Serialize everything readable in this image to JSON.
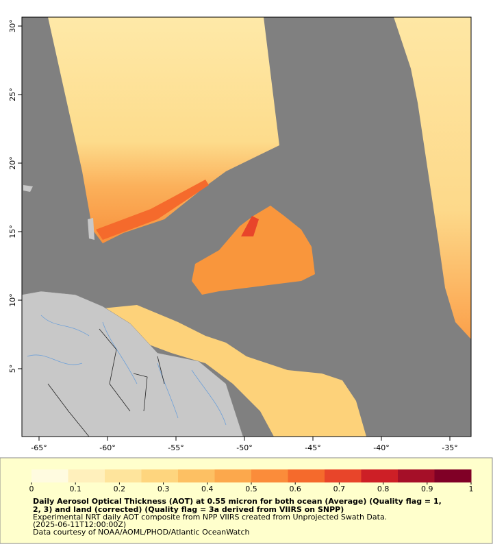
{
  "map": {
    "xlim": [
      -66.25,
      -33.45
    ],
    "ylim": [
      0.05,
      30.65
    ],
    "xticks": [
      {
        "value": -65,
        "label": "-65°"
      },
      {
        "value": -60,
        "label": "-60°"
      },
      {
        "value": -55,
        "label": "-55°"
      },
      {
        "value": -50,
        "label": "-50°"
      },
      {
        "value": -45,
        "label": "-45°"
      },
      {
        "value": -40,
        "label": "-40°"
      },
      {
        "value": -35,
        "label": "-35°"
      }
    ],
    "yticks": [
      {
        "value": 5,
        "label": "5°"
      },
      {
        "value": 10,
        "label": "10°"
      },
      {
        "value": 15,
        "label": "15°"
      },
      {
        "value": 20,
        "label": "20°"
      },
      {
        "value": 25,
        "label": "25°"
      },
      {
        "value": 30,
        "label": "30°"
      }
    ]
  },
  "colorbar": {
    "range": [
      0,
      1
    ],
    "ticks": [
      0,
      0.1,
      0.2,
      0.3,
      0.4,
      0.5,
      0.6,
      0.7,
      0.8,
      0.9,
      1
    ],
    "colors": [
      "#fffbe0",
      "#fff0bc",
      "#fee49c",
      "#fed57e",
      "#fdc063",
      "#fca84c",
      "#fb8c3a",
      "#f56a2c",
      "#e8452a",
      "#cd1f26",
      "#a50f28",
      "#800026"
    ]
  },
  "caption": {
    "title_lines": [
      "Daily Aerosol Optical Thickness (AOT) at 0.55 micron for both ocean (Average) (Quality flag = 1,",
      "2, 3) and land (corrected) (Quality flag = 3a derived from VIIRS on SNPP)"
    ],
    "lines": [
      "Experimental NRT daily AOT composite from NPP VIIRS created from Unprojected Swath Data.",
      "(2025-06-11T12:00:00Z)",
      "Data courtesy of NOAA/AOML/PHOD/Atlantic OceanWatch"
    ]
  }
}
